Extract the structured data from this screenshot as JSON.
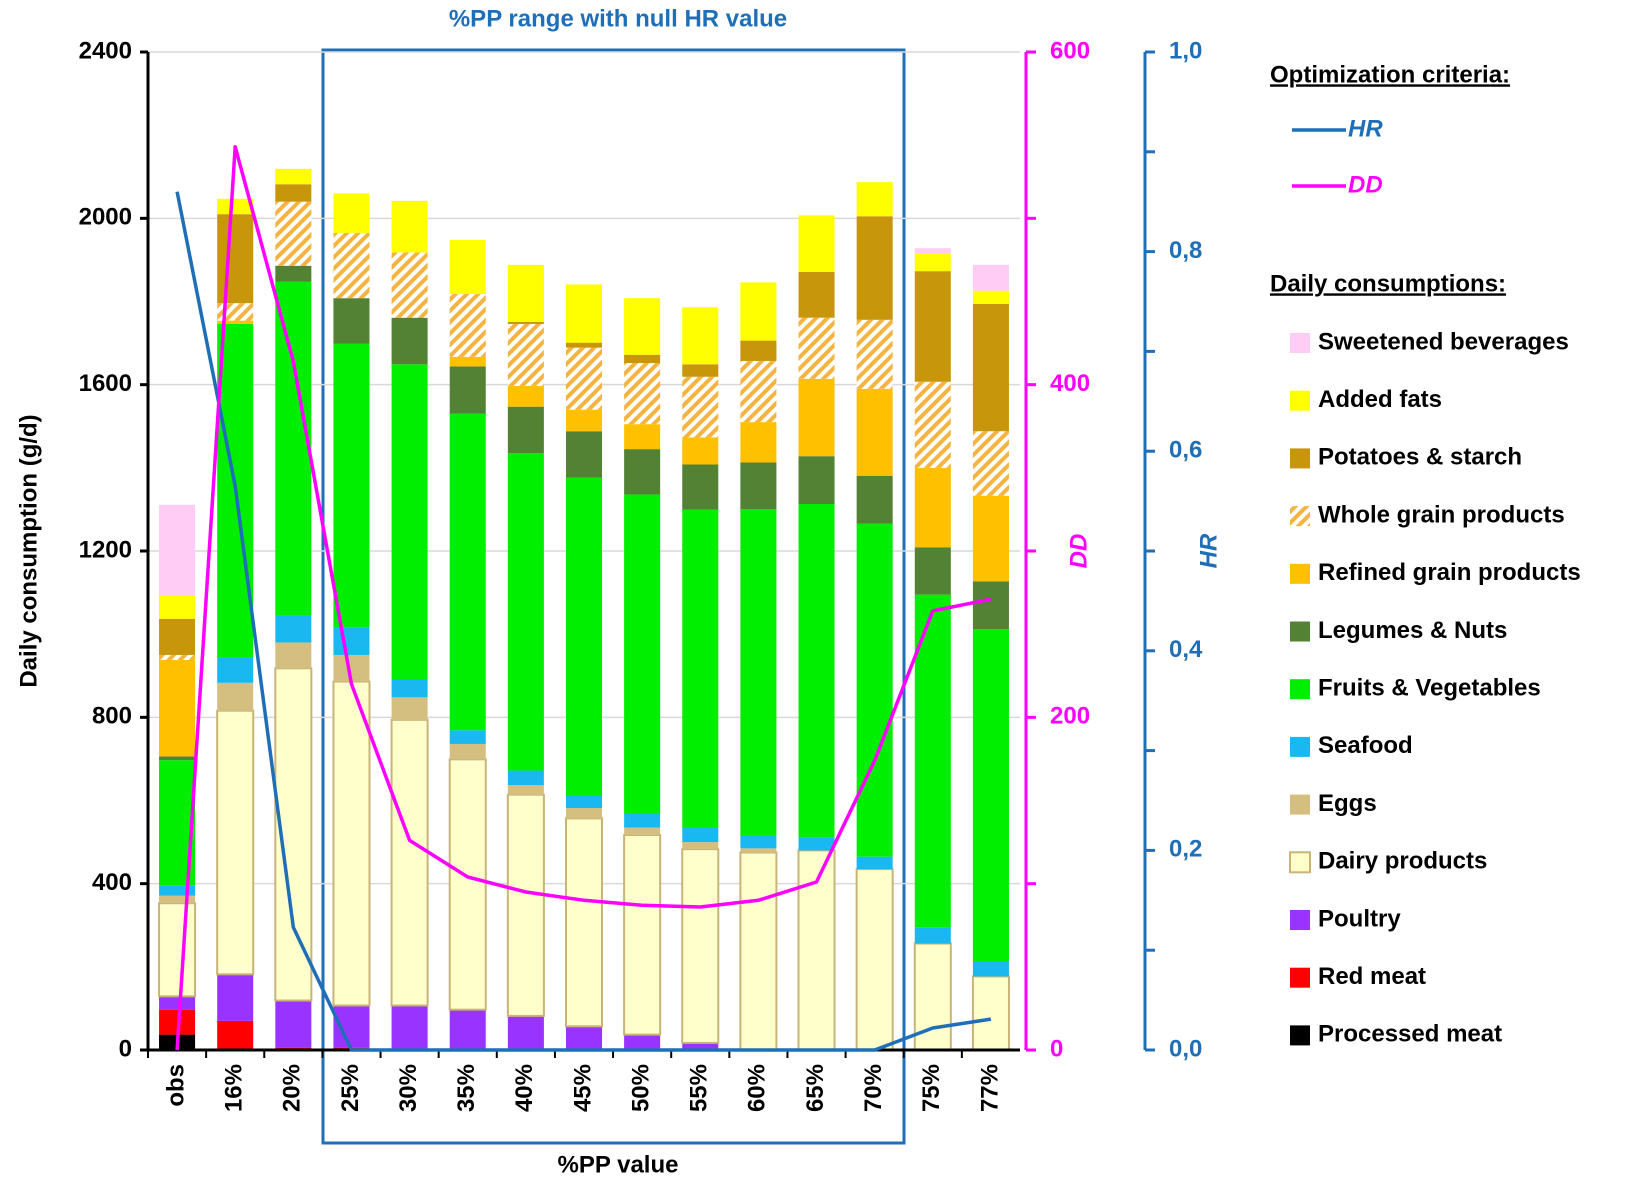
{
  "chart_data": {
    "type": "bar",
    "stacked": true,
    "annotation": "%PP range with null HR value",
    "xlabel": "%PP value",
    "ylabel": "Daily consumption (g/d)",
    "y2label": "DD",
    "y3label": "HR",
    "categories": [
      "obs",
      "16%",
      "20%",
      "25%",
      "30%",
      "35%",
      "40%",
      "45%",
      "50%",
      "55%",
      "60%",
      "65%",
      "70%",
      "75%",
      "77%"
    ],
    "ylim": [
      0,
      2400
    ],
    "yticks": [
      0,
      400,
      800,
      1200,
      1600,
      2000,
      2400
    ],
    "y2lim": [
      0,
      600
    ],
    "y2ticks": [
      0,
      200,
      400,
      600
    ],
    "y3lim": [
      0,
      1
    ],
    "y3ticks": [
      {
        "value": 0,
        "label": "0,0"
      },
      {
        "value": 0.2,
        "label": "0,2"
      },
      {
        "value": 0.4,
        "label": "0,4"
      },
      {
        "value": 0.6,
        "label": "0,6"
      },
      {
        "value": 0.8,
        "label": "0,8"
      },
      {
        "value": 1,
        "label": "1,0"
      }
    ],
    "grid": true,
    "legend_title_lines": "Optimization criteria:",
    "legend_title_bars": "Daily consumptions:",
    "line_series": [
      {
        "name": "HR",
        "color": "#1f6fb8",
        "axis": "y3",
        "values": [
          0.86,
          0.565,
          0.123,
          0,
          0,
          0,
          0,
          0,
          0,
          0,
          0,
          0,
          0,
          0.022,
          0.031
        ]
      },
      {
        "name": "DD",
        "color": "#ff00ff",
        "axis": "y2",
        "values": [
          0,
          543,
          414,
          220,
          126,
          104,
          95,
          90,
          87,
          86,
          90,
          101,
          174,
          264,
          271
        ]
      }
    ],
    "series": [
      {
        "name": "Processed meat",
        "color": "#000000",
        "values": [
          37,
          2,
          0,
          0,
          0,
          0,
          0,
          0,
          0,
          0,
          0,
          0,
          0,
          0,
          0
        ]
      },
      {
        "name": "Red meat",
        "color": "#ff0000",
        "values": [
          60,
          68,
          5,
          5,
          0,
          0,
          0,
          0,
          0,
          0,
          0,
          0,
          0,
          0,
          0
        ]
      },
      {
        "name": "Poultry",
        "color": "#9933ff",
        "values": [
          32,
          112,
          114,
          102,
          107,
          97,
          82,
          57,
          37,
          17,
          0,
          0,
          0,
          0,
          0
        ]
      },
      {
        "name": "Dairy products",
        "color": "#ffffcc",
        "values": [
          224,
          634,
          799,
          779,
          687,
          602,
          532,
          500,
          480,
          466,
          475,
          480,
          435,
          256,
          177
        ]
      },
      {
        "name": "Eggs",
        "color": "#d4bf80",
        "values": [
          18,
          67,
          62,
          64,
          54,
          37,
          23,
          25,
          18,
          17,
          10,
          0,
          0,
          0,
          0
        ]
      },
      {
        "name": "Seafood",
        "color": "#1ab8f0",
        "values": [
          25,
          62,
          65,
          67,
          43,
          33,
          35,
          30,
          35,
          35,
          32,
          32,
          30,
          38,
          37
        ]
      },
      {
        "name": "Fruits & Vegetables",
        "color": "#00ee00",
        "values": [
          301,
          801,
          803,
          682,
          758,
          761,
          763,
          764,
          766,
          764,
          784,
          801,
          801,
          801,
          798
        ]
      },
      {
        "name": "Legumes & Nuts",
        "color": "#548235",
        "values": [
          9,
          0,
          38,
          109,
          112,
          114,
          112,
          112,
          109,
          109,
          112,
          115,
          115,
          114,
          115
        ]
      },
      {
        "name": "Refined grain products",
        "color": "#ffc000",
        "values": [
          232,
          8,
          0,
          0,
          0,
          23,
          50,
          52,
          60,
          65,
          97,
          186,
          209,
          191,
          206
        ]
      },
      {
        "name": "Whole grain products",
        "color": "#f5b342",
        "pattern": "hatch",
        "values": [
          12,
          42,
          154,
          157,
          157,
          151,
          149,
          149,
          147,
          146,
          147,
          147,
          166,
          207,
          155
        ]
      },
      {
        "name": "Potatoes & starch",
        "color": "#c8960a",
        "values": [
          87,
          214,
          42,
          0,
          0,
          0,
          5,
          12,
          20,
          30,
          49,
          110,
          249,
          266,
          306
        ]
      },
      {
        "name": "Added fats",
        "color": "#ffff00",
        "values": [
          55,
          37,
          37,
          95,
          124,
          130,
          137,
          140,
          136,
          137,
          140,
          136,
          82,
          42,
          32
        ]
      },
      {
        "name": "Sweetened beverages",
        "color": "#ffccf5",
        "values": [
          219,
          0,
          0,
          0,
          0,
          0,
          0,
          0,
          0,
          0,
          0,
          0,
          0,
          13,
          62
        ]
      }
    ]
  }
}
